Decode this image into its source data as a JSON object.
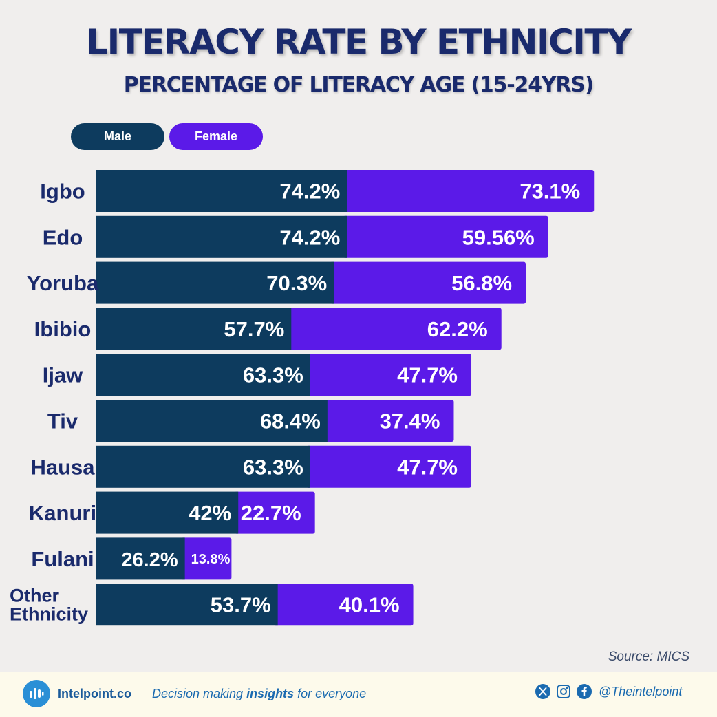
{
  "title": "LITERACY RATE BY ETHNICITY",
  "subtitle": "PERCENTAGE OF LITERACY AGE (15-24YRS)",
  "legend": {
    "male": "Male",
    "female": "Female"
  },
  "colors": {
    "male": "#0d3b5e",
    "female": "#5b1ae8",
    "label": "#1a2a6c"
  },
  "chart_data": {
    "type": "bar",
    "orientation": "horizontal-stacked",
    "title": "LITERACY RATE BY ETHNICITY",
    "subtitle": "PERCENTAGE OF LITERACY AGE (15-24YRS)",
    "categories": [
      "Igbo",
      "Edo",
      "Yoruba",
      "Ibibio",
      "Ijaw",
      "Tiv",
      "Hausa",
      "Kanuri",
      "Fulani",
      "Other Ethnicity"
    ],
    "category_lines": [
      [
        "Igbo"
      ],
      [
        "Edo"
      ],
      [
        "Yoruba"
      ],
      [
        "Ibibio"
      ],
      [
        "Ijaw"
      ],
      [
        "Tiv"
      ],
      [
        "Hausa"
      ],
      [
        "Kanuri"
      ],
      [
        "Fulani"
      ],
      [
        "Other",
        "Ethnicity"
      ]
    ],
    "series": [
      {
        "name": "Male",
        "values": [
          74.2,
          74.2,
          70.3,
          57.7,
          63.3,
          68.4,
          63.3,
          42,
          26.2,
          53.7
        ],
        "labels": [
          "74.2%",
          "74.2%",
          "70.3%",
          "57.7%",
          "63.3%",
          "68.4%",
          "63.3%",
          "42%",
          "26.2%",
          "53.7%"
        ]
      },
      {
        "name": "Female",
        "values": [
          73.1,
          59.56,
          56.8,
          62.2,
          47.7,
          37.4,
          47.7,
          22.7,
          13.8,
          40.1
        ],
        "labels": [
          "73.1%",
          "59.56%",
          "56.8%",
          "62.2%",
          "47.7%",
          "37.4%",
          "47.7%",
          "22.7%",
          "13.8%",
          "40.1%"
        ]
      }
    ],
    "xlabel": "",
    "ylabel": "",
    "xlim": [
      0,
      150
    ],
    "legend_position": "top-left",
    "grid": false
  },
  "source": "Source: MICS",
  "footer": {
    "brand": "Intelpoint.co",
    "tagline_pre": "Decision making ",
    "tagline_bold": "insights",
    "tagline_post": " for everyone",
    "handle": "@Theintelpoint"
  }
}
